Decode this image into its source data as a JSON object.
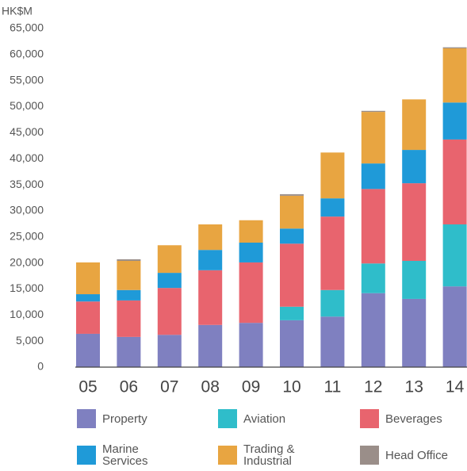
{
  "chart_data": {
    "type": "stacked_bar",
    "y_label": "HK$M",
    "categories": [
      "05",
      "06",
      "07",
      "08",
      "09",
      "10",
      "11",
      "12",
      "13",
      "14"
    ],
    "ylim": [
      0,
      65000
    ],
    "yticks": [
      0,
      {
        "value": 5000,
        "label": "5,000"
      },
      {
        "value": 10000,
        "label": "10,000"
      },
      {
        "value": 15000,
        "label": "15,000"
      },
      {
        "value": 20000,
        "label": "20,000"
      },
      {
        "value": 25000,
        "label": "25,000"
      },
      {
        "value": 30000,
        "label": "30,000"
      },
      {
        "value": 35000,
        "label": "35,000"
      },
      {
        "value": 40000,
        "label": "40,000"
      },
      {
        "value": 45000,
        "label": "45,000"
      },
      {
        "value": 50000,
        "label": "50,000"
      },
      {
        "value": 55000,
        "label": "55,000"
      },
      {
        "value": 60000,
        "label": "60,000"
      },
      {
        "value": 65000,
        "label": "65,000"
      }
    ],
    "series": [
      {
        "name": "Property",
        "color": "#7f80c0",
        "values": [
          6400,
          5800,
          6200,
          8100,
          8500,
          9000,
          9700,
          14200,
          13100,
          15500
        ]
      },
      {
        "name": "Aviation",
        "color": "#2fbdca",
        "values": [
          0,
          0,
          0,
          0,
          0,
          2600,
          5100,
          5700,
          7300,
          11900
        ]
      },
      {
        "name": "Beverages",
        "color": "#e8646e",
        "values": [
          6200,
          7000,
          9000,
          10500,
          11600,
          12100,
          14100,
          14300,
          14900,
          16300
        ]
      },
      {
        "name": "Marine Services",
        "color": "#1f9ad8",
        "values": [
          1400,
          2000,
          2900,
          3900,
          3800,
          2900,
          3500,
          4900,
          6400,
          7100
        ]
      },
      {
        "name": "Trading & Industrial",
        "color": "#e8a541",
        "values": [
          6100,
          5600,
          5300,
          4900,
          4300,
          6300,
          8800,
          9900,
          9700,
          10400
        ]
      },
      {
        "name": "Head Office",
        "color": "#9a8e89",
        "values": [
          0,
          300,
          0,
          0,
          0,
          300,
          0,
          200,
          0,
          200
        ]
      }
    ]
  }
}
